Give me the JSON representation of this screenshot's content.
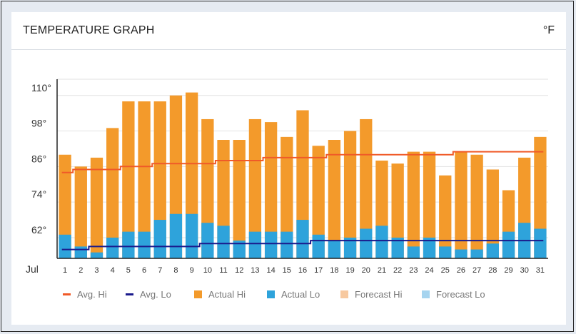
{
  "header": {
    "title": "TEMPERATURE GRAPH",
    "unit": "°F"
  },
  "legend": [
    {
      "label": "Avg. Hi",
      "kind": "line",
      "color": "#f05a28"
    },
    {
      "label": "Avg. Lo",
      "kind": "line",
      "color": "#1a1a8c"
    },
    {
      "label": "Actual Hi",
      "kind": "box",
      "color": "#f39a2b"
    },
    {
      "label": "Actual Lo",
      "kind": "box",
      "color": "#2ea3db"
    },
    {
      "label": "Forecast Hi",
      "kind": "box",
      "color": "#f7c9a0"
    },
    {
      "label": "Forecast Lo",
      "kind": "box",
      "color": "#a6d4ef"
    }
  ],
  "chart_data": {
    "type": "bar",
    "month_label": "Jul",
    "categories": [
      "1",
      "2",
      "3",
      "4",
      "5",
      "6",
      "7",
      "8",
      "9",
      "10",
      "11",
      "12",
      "13",
      "14",
      "15",
      "16",
      "17",
      "18",
      "19",
      "20",
      "21",
      "22",
      "23",
      "24",
      "25",
      "26",
      "27",
      "28",
      "29",
      "30",
      "31"
    ],
    "yticks": [
      "62°",
      "74°",
      "86°",
      "98°",
      "110°"
    ],
    "ylim": [
      55,
      115
    ],
    "series": [
      {
        "name": "Actual Hi",
        "color": "#f39a2b",
        "values": [
          90,
          86,
          89,
          99,
          108,
          108,
          108,
          110,
          111,
          102,
          95,
          95,
          102,
          101,
          96,
          105,
          93,
          95,
          98,
          102,
          88,
          87,
          91,
          91,
          83,
          91,
          90,
          85,
          78,
          89,
          96
        ]
      },
      {
        "name": "Actual Lo",
        "color": "#2ea3db",
        "values": [
          63,
          59,
          57,
          62,
          64,
          64,
          68,
          70,
          70,
          67,
          66,
          61,
          64,
          64,
          64,
          68,
          63,
          61,
          62,
          65,
          66,
          62,
          59,
          62,
          59,
          58,
          58,
          60,
          64,
          67,
          65
        ]
      },
      {
        "name": "Avg. Hi",
        "color": "#f05a28",
        "values": [
          84,
          85,
          85,
          85,
          86,
          86,
          87,
          87,
          87,
          87,
          88,
          88,
          88,
          89,
          89,
          89,
          89,
          90,
          90,
          90,
          90,
          90,
          90,
          90,
          90,
          91,
          91,
          91,
          91,
          91,
          91
        ]
      },
      {
        "name": "Avg. Lo",
        "color": "#1a1a8c",
        "values": [
          58,
          58,
          59,
          59,
          59,
          59,
          59,
          59,
          59,
          60,
          60,
          60,
          60,
          60,
          60,
          60,
          61,
          61,
          61,
          61,
          61,
          61,
          61,
          61,
          61,
          61,
          61,
          61,
          61,
          61,
          61
        ]
      }
    ]
  }
}
